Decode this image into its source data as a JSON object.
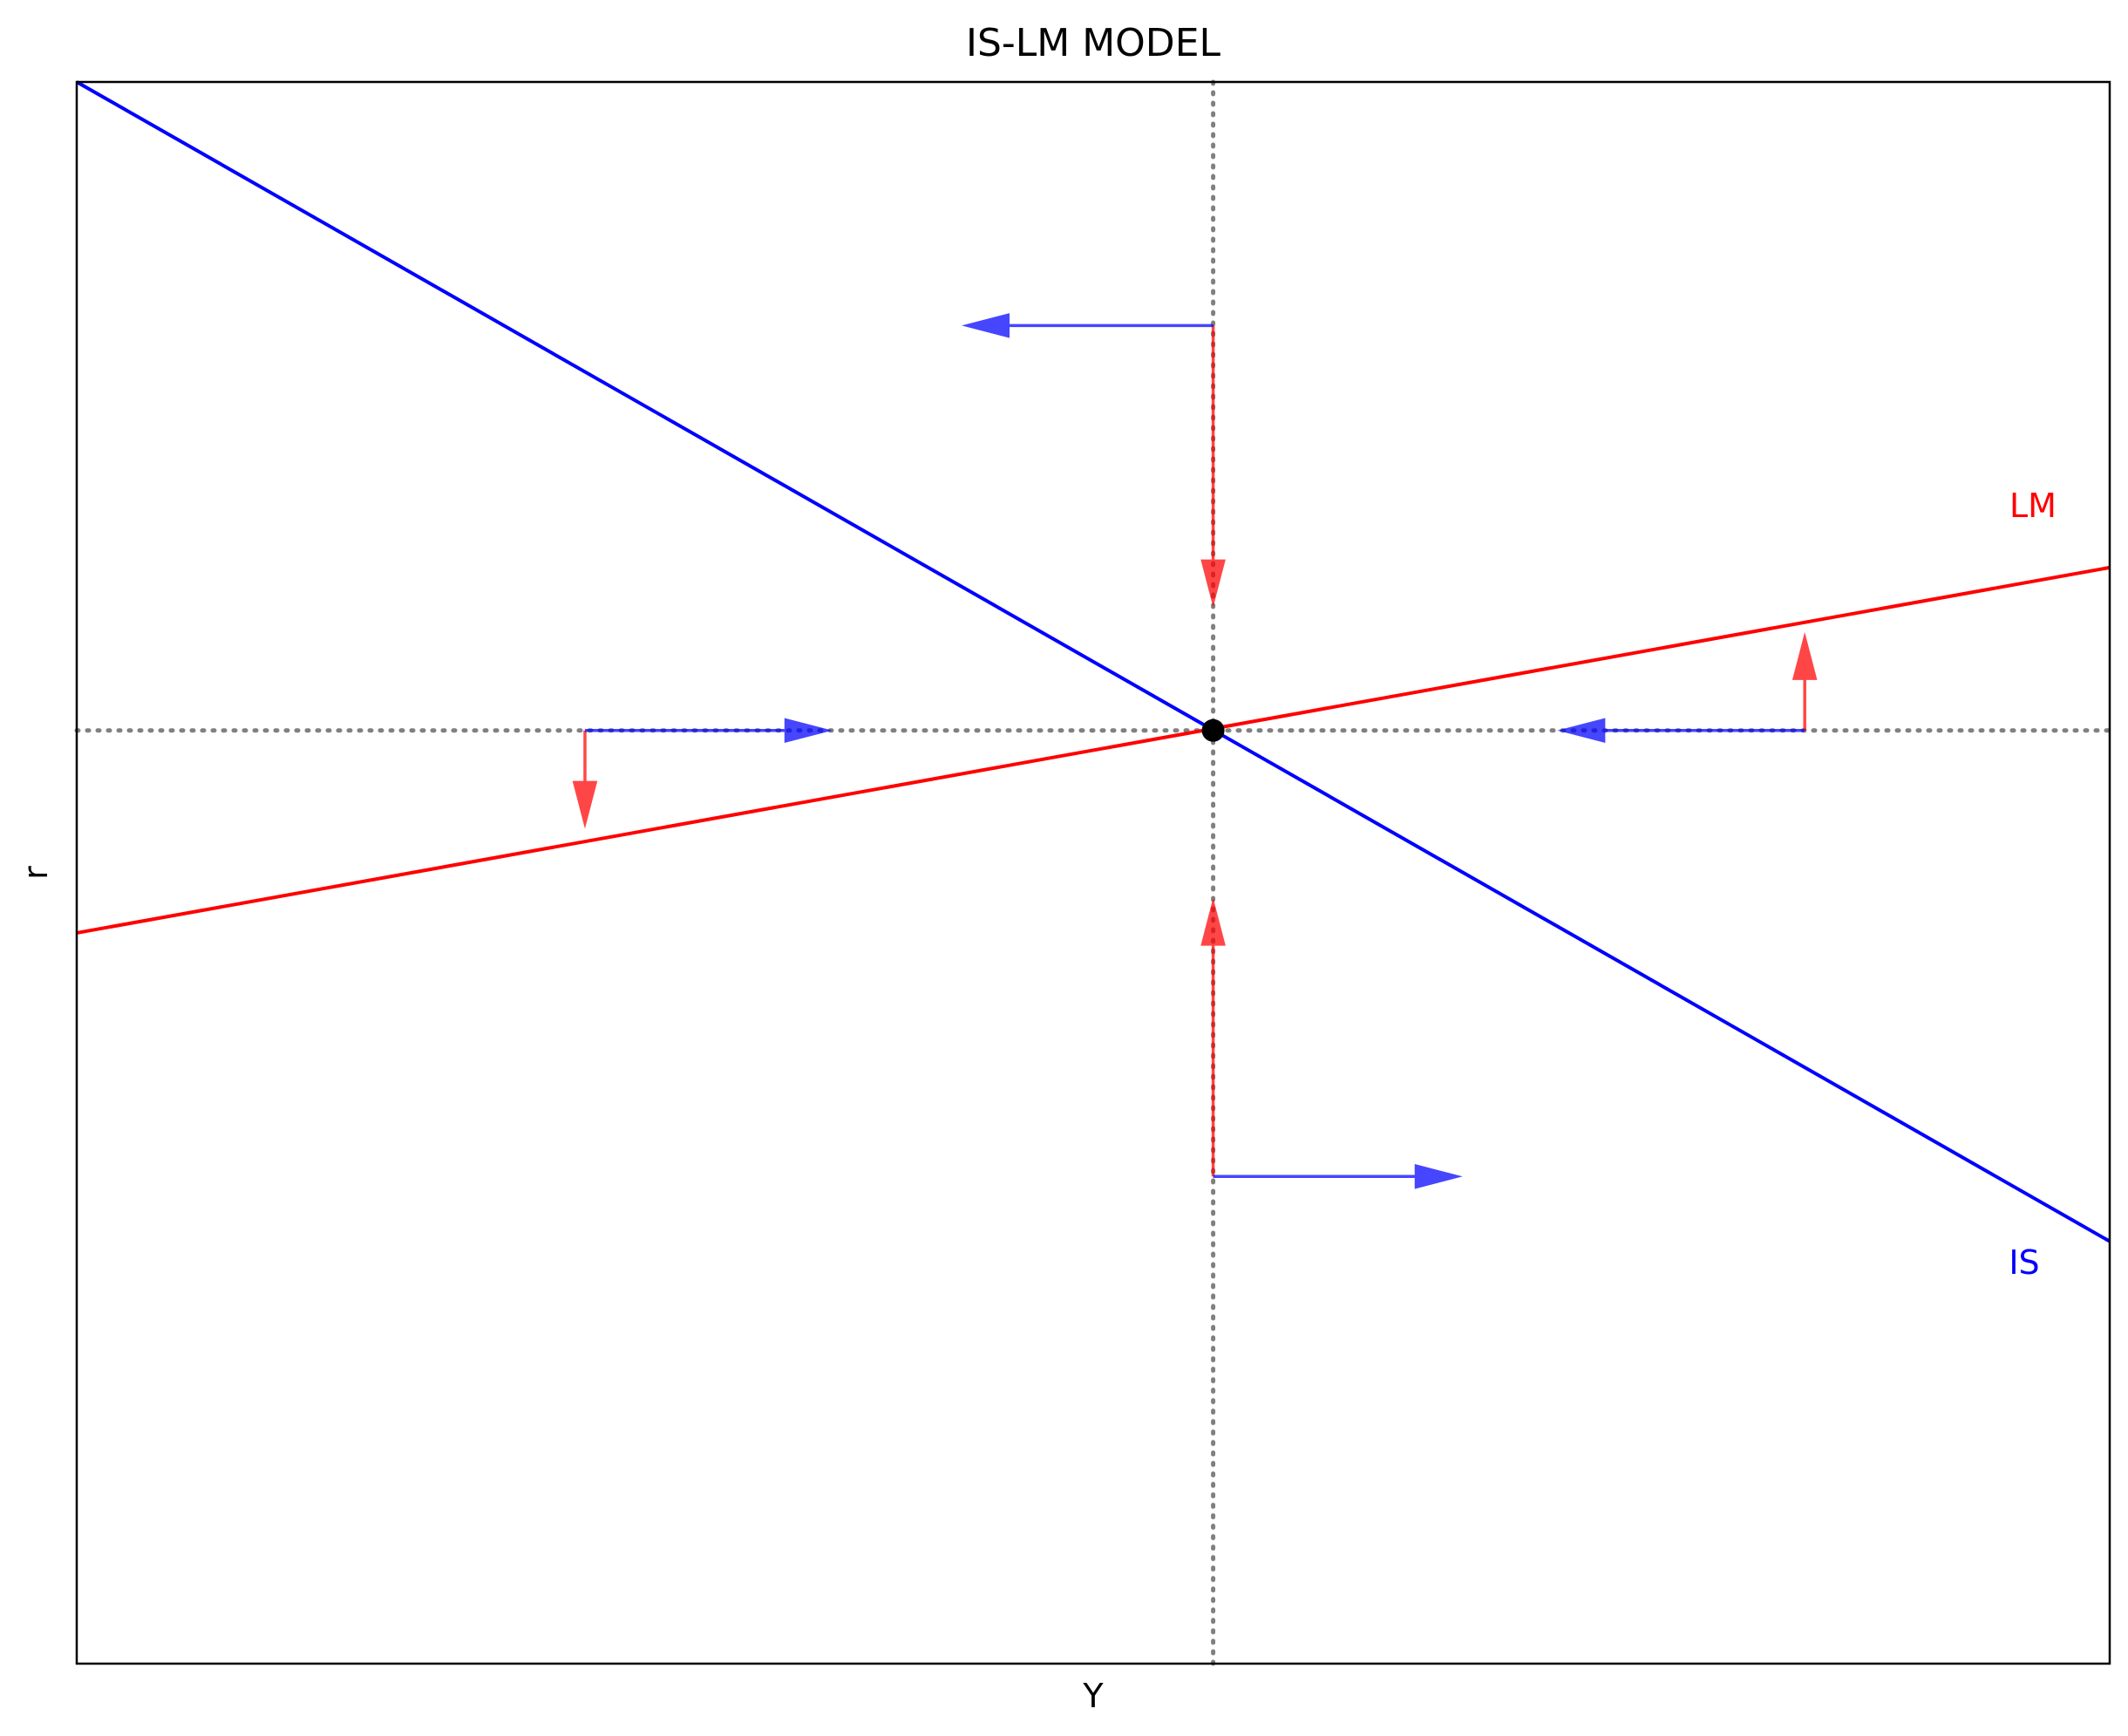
{
  "chart_data": {
    "type": "line",
    "title": "IS-LM MODEL",
    "xlabel": "Y",
    "ylabel": "r",
    "xlim": [
      0,
      10
    ],
    "ylim": [
      0,
      10
    ],
    "grid": false,
    "colors": {
      "IS": "#0000ff",
      "LM": "#ff0000",
      "guides": "#808080",
      "equilibrium": "#000000"
    },
    "series": [
      {
        "name": "IS",
        "label_position": "bottom-right",
        "x": [
          0,
          10
        ],
        "y": [
          10,
          2.67
        ]
      },
      {
        "name": "LM",
        "label_position": "top-right",
        "x": [
          0,
          10
        ],
        "y": [
          4.62,
          6.93
        ]
      }
    ],
    "equilibrium": {
      "x": 5.59,
      "y": 5.9
    },
    "arrows": [
      {
        "color": "red",
        "from": [
          5.59,
          8.46
        ],
        "to": [
          5.59,
          6.7
        ]
      },
      {
        "color": "blue",
        "from": [
          5.59,
          8.46
        ],
        "to": [
          4.37,
          8.46
        ]
      },
      {
        "color": "red",
        "from": [
          5.59,
          3.08
        ],
        "to": [
          5.59,
          4.82
        ]
      },
      {
        "color": "blue",
        "from": [
          5.59,
          3.08
        ],
        "to": [
          6.8,
          3.08
        ]
      },
      {
        "color": "red",
        "from": [
          2.5,
          5.9
        ],
        "to": [
          2.5,
          5.3
        ]
      },
      {
        "color": "blue",
        "from": [
          2.5,
          5.9
        ],
        "to": [
          3.7,
          5.9
        ]
      },
      {
        "color": "red",
        "from": [
          8.5,
          5.9
        ],
        "to": [
          8.5,
          6.5
        ]
      },
      {
        "color": "blue",
        "from": [
          8.5,
          5.9
        ],
        "to": [
          7.3,
          5.9
        ]
      }
    ]
  }
}
